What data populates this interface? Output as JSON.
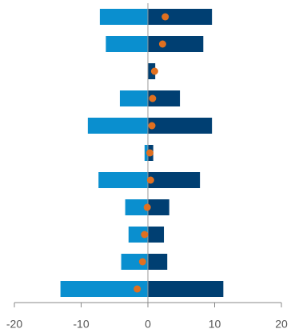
{
  "chart_data": {
    "type": "bar",
    "orientation": "horizontal",
    "categories": [
      null,
      null,
      null,
      null,
      null,
      null,
      null,
      null,
      null,
      null,
      null
    ],
    "series": [
      {
        "color": "#0a8fcf",
        "marker": "bar",
        "values": [
          -7.2,
          -6.3,
          0,
          -4.2,
          -9.0,
          -0.5,
          -7.4,
          -3.4,
          -2.9,
          -4.0,
          -13.1
        ]
      },
      {
        "color": "#003f72",
        "marker": "bar",
        "values": [
          9.6,
          8.3,
          1.1,
          4.8,
          9.6,
          0.8,
          7.8,
          3.2,
          2.4,
          2.9,
          11.3
        ]
      },
      {
        "color": "#e07020",
        "marker": "dot",
        "values": [
          2.6,
          2.2,
          1.0,
          0.7,
          0.6,
          0.3,
          0.4,
          -0.1,
          -0.5,
          -0.8,
          -1.6
        ]
      }
    ],
    "xlim": [
      -20,
      20
    ],
    "xticks": [
      -20,
      -10,
      0,
      10,
      20
    ]
  }
}
